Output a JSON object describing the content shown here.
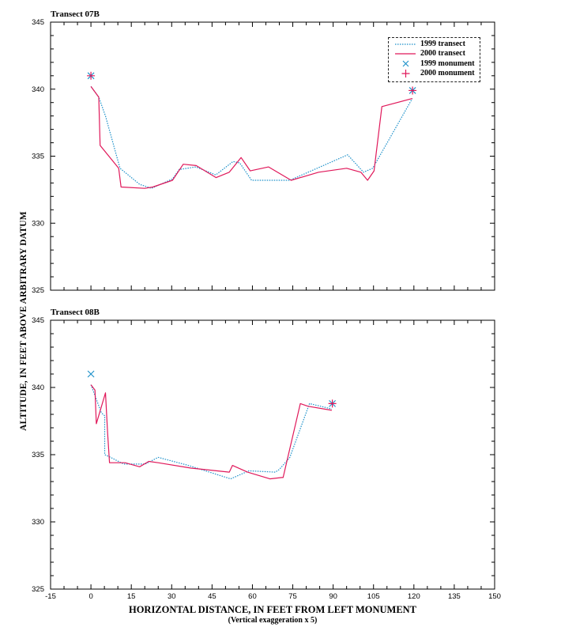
{
  "figure": {
    "ylabel": "ALTITUDE, IN FEET ABOVE ARBITRARY DATUM",
    "xlabel": "HORIZONTAL DISTANCE, IN FEET FROM LEFT MONUMENT",
    "xsubtitle": "(Vertical exaggeration x 5)",
    "colors": {
      "transect_1999": "#1a8fc9",
      "transect_2000": "#e0185a"
    }
  },
  "legend": {
    "items": [
      {
        "label": "1999 transect",
        "symbol": "dotted-line"
      },
      {
        "label": "2000 transect",
        "symbol": "solid-line"
      },
      {
        "label": "1999 monument",
        "symbol": "x-marker"
      },
      {
        "label": "2000 monument",
        "symbol": "plus-marker"
      }
    ]
  },
  "chart_data": [
    {
      "type": "line",
      "title": "Transect 07B",
      "xlabel": "HORIZONTAL DISTANCE, IN FEET FROM LEFT MONUMENT",
      "ylabel": "ALTITUDE, IN FEET ABOVE ARBITRARY DATUM",
      "xlim": [
        -15,
        150
      ],
      "ylim": [
        325,
        345
      ],
      "xticks": [
        -15,
        0,
        15,
        30,
        45,
        60,
        75,
        90,
        105,
        120,
        135,
        150
      ],
      "yticks": [
        325,
        330,
        335,
        340,
        345
      ],
      "grid": false,
      "legend_position": "upper right",
      "series": [
        {
          "name": "1999 transect",
          "style": "dotted",
          "points": [
            [
              0,
              340.2
            ],
            [
              2.9,
              339.4
            ],
            [
              5.4,
              338.0
            ],
            [
              10.8,
              334.1
            ],
            [
              18.1,
              332.9
            ],
            [
              22.5,
              332.6
            ],
            [
              30.3,
              333.3
            ],
            [
              32.8,
              334.0
            ],
            [
              39.0,
              334.2
            ],
            [
              46.4,
              333.6
            ],
            [
              52.8,
              334.6
            ],
            [
              55.3,
              334.5
            ],
            [
              59.7,
              333.2
            ],
            [
              73.9,
              333.2
            ],
            [
              95.4,
              335.1
            ],
            [
              101.3,
              333.8
            ],
            [
              104.7,
              334.1
            ],
            [
              119.4,
              339.3
            ]
          ]
        },
        {
          "name": "2000 transect",
          "style": "solid",
          "points": [
            [
              0,
              340.2
            ],
            [
              2.9,
              339.4
            ],
            [
              3.4,
              335.8
            ],
            [
              10.3,
              334.1
            ],
            [
              11.2,
              332.7
            ],
            [
              20.0,
              332.6
            ],
            [
              23.0,
              332.7
            ],
            [
              30.3,
              333.2
            ],
            [
              34.3,
              334.4
            ],
            [
              39.1,
              334.3
            ],
            [
              46.5,
              333.4
            ],
            [
              51.4,
              333.8
            ],
            [
              55.8,
              334.9
            ],
            [
              59.2,
              333.9
            ],
            [
              66.0,
              334.2
            ],
            [
              74.4,
              333.2
            ],
            [
              84.6,
              333.8
            ],
            [
              95.0,
              334.1
            ],
            [
              100.3,
              333.8
            ],
            [
              102.8,
              333.2
            ],
            [
              105.2,
              333.9
            ],
            [
              108.1,
              338.7
            ],
            [
              119.4,
              339.3
            ]
          ]
        },
        {
          "name": "1999 monument",
          "style": "x-marker",
          "points": [
            [
              0,
              341.0
            ],
            [
              119.5,
              339.9
            ]
          ]
        },
        {
          "name": "2000 monument",
          "style": "plus-marker",
          "points": [
            [
              0,
              341.0
            ],
            [
              119.5,
              339.9
            ]
          ]
        }
      ]
    },
    {
      "type": "line",
      "title": "Transect 08B",
      "xlabel": "HORIZONTAL DISTANCE, IN FEET FROM LEFT MONUMENT",
      "ylabel": "ALTITUDE, IN FEET ABOVE ARBITRARY DATUM",
      "xlim": [
        -15,
        150
      ],
      "ylim": [
        325,
        345
      ],
      "xticks": [
        -15,
        0,
        15,
        30,
        45,
        60,
        75,
        90,
        105,
        120,
        135,
        150
      ],
      "yticks": [
        325,
        330,
        335,
        340,
        345
      ],
      "grid": false,
      "series": [
        {
          "name": "1999 transect",
          "style": "dotted",
          "points": [
            [
              0,
              340.2
            ],
            [
              3.9,
              338.1
            ],
            [
              5.1,
              337.9
            ],
            [
              5.1,
              335.0
            ],
            [
              7.3,
              334.8
            ],
            [
              12.2,
              334.3
            ],
            [
              20.1,
              334.3
            ],
            [
              25.0,
              334.8
            ],
            [
              36.2,
              334.2
            ],
            [
              51.9,
              333.2
            ],
            [
              58.7,
              333.8
            ],
            [
              68.5,
              333.7
            ],
            [
              70.0,
              333.9
            ],
            [
              73.9,
              334.8
            ],
            [
              81.2,
              338.8
            ],
            [
              89.5,
              338.4
            ]
          ]
        },
        {
          "name": "2000 transect",
          "style": "solid",
          "points": [
            [
              0,
              340.2
            ],
            [
              1.5,
              339.8
            ],
            [
              2.0,
              337.3
            ],
            [
              5.4,
              339.6
            ],
            [
              6.2,
              336.6
            ],
            [
              6.9,
              334.4
            ],
            [
              12.7,
              334.4
            ],
            [
              18.1,
              334.1
            ],
            [
              21.5,
              334.5
            ],
            [
              25.0,
              334.4
            ],
            [
              37.2,
              334.0
            ],
            [
              51.4,
              333.7
            ],
            [
              52.6,
              334.2
            ],
            [
              58.2,
              333.7
            ],
            [
              66.5,
              333.2
            ],
            [
              70.9,
              333.3
            ],
            [
              71.4,
              333.3
            ],
            [
              77.8,
              338.8
            ],
            [
              80.7,
              338.6
            ],
            [
              89.5,
              338.3
            ]
          ]
        },
        {
          "name": "1999 monument",
          "style": "x-marker",
          "points": [
            [
              0,
              341.0
            ],
            [
              89.7,
              338.8
            ]
          ]
        },
        {
          "name": "2000 monument",
          "style": "plus-marker",
          "points": [
            [
              89.7,
              338.8
            ]
          ]
        }
      ]
    }
  ]
}
